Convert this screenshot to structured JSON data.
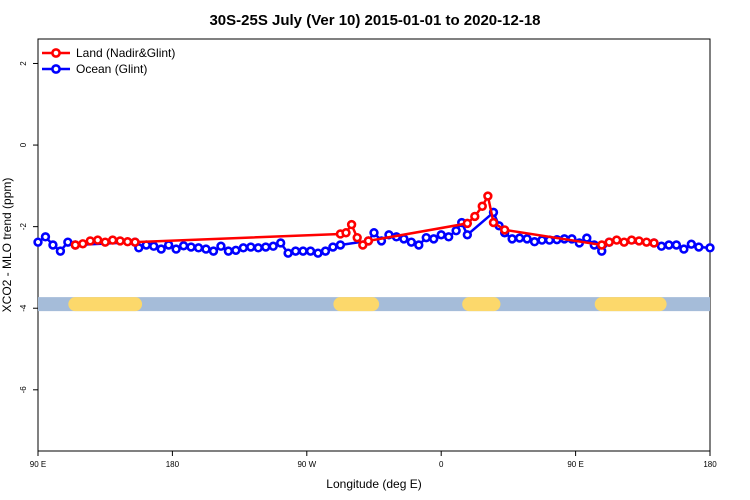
{
  "chart_data": {
    "type": "line",
    "title": "30S-25S July (Ver 10)   2015-01-01 to 2020-12-18",
    "xlabel": "Longitude (deg E)",
    "ylabel": "XCO2 - MLO trend (ppm)",
    "xlim": [
      90,
      450
    ],
    "ylim": [
      -7.5,
      2.6
    ],
    "x_ticks": [
      {
        "value": 90,
        "label": "90 E"
      },
      {
        "value": 162,
        "label": "180"
      },
      {
        "value": 234,
        "label": "90 W"
      },
      {
        "value": 306,
        "label": "0"
      },
      {
        "value": 378,
        "label": "90 E"
      },
      {
        "value": 450,
        "label": "180"
      }
    ],
    "y_ticks": [
      2,
      0,
      -2,
      -4,
      -6
    ],
    "grid": false,
    "legend_position": "top-left",
    "colors": {
      "land": "#ff0000",
      "ocean": "#0000ff",
      "ocean_band": "#a5bcd9",
      "land_band": "#fcd86b"
    },
    "surface_band": {
      "y": -3.9,
      "ocean_color": "#a5bcd9",
      "land_color": "#fcd86b",
      "land_segments": [
        [
          110,
          142
        ],
        [
          252,
          269
        ],
        [
          321,
          334
        ],
        [
          392,
          423
        ]
      ]
    },
    "series": [
      {
        "name": "Land (Nadir&Glint)",
        "color": "#ff0000",
        "points": [
          [
            110,
            -2.45
          ],
          [
            114,
            -2.42
          ],
          [
            118,
            -2.35
          ],
          [
            122,
            -2.33
          ],
          [
            126,
            -2.38
          ],
          [
            130,
            -2.33
          ],
          [
            134,
            -2.35
          ],
          [
            138,
            -2.37
          ],
          [
            142,
            -2.38
          ],
          [
            252,
            -2.18
          ],
          [
            255,
            -2.15
          ],
          [
            258,
            -1.95
          ],
          [
            261,
            -2.27
          ],
          [
            264,
            -2.45
          ],
          [
            267,
            -2.35
          ],
          [
            320,
            -1.92
          ],
          [
            324,
            -1.75
          ],
          [
            328,
            -1.5
          ],
          [
            331,
            -1.25
          ],
          [
            334,
            -1.9
          ],
          [
            340,
            -2.08
          ],
          [
            392,
            -2.45
          ],
          [
            396,
            -2.38
          ],
          [
            400,
            -2.33
          ],
          [
            404,
            -2.38
          ],
          [
            408,
            -2.33
          ],
          [
            412,
            -2.35
          ],
          [
            416,
            -2.38
          ],
          [
            420,
            -2.4
          ]
        ]
      },
      {
        "name": "Ocean (Glint)",
        "color": "#0000ff",
        "points": [
          [
            90,
            -2.38
          ],
          [
            94,
            -2.25
          ],
          [
            98,
            -2.45
          ],
          [
            102,
            -2.6
          ],
          [
            106,
            -2.38
          ],
          [
            110,
            -2.45
          ],
          [
            142,
            -2.38
          ],
          [
            144,
            -2.52
          ],
          [
            148,
            -2.45
          ],
          [
            152,
            -2.48
          ],
          [
            156,
            -2.55
          ],
          [
            160,
            -2.45
          ],
          [
            164,
            -2.55
          ],
          [
            168,
            -2.47
          ],
          [
            172,
            -2.5
          ],
          [
            176,
            -2.52
          ],
          [
            180,
            -2.55
          ],
          [
            184,
            -2.6
          ],
          [
            188,
            -2.48
          ],
          [
            192,
            -2.6
          ],
          [
            196,
            -2.58
          ],
          [
            200,
            -2.52
          ],
          [
            204,
            -2.5
          ],
          [
            208,
            -2.52
          ],
          [
            212,
            -2.5
          ],
          [
            216,
            -2.48
          ],
          [
            220,
            -2.4
          ],
          [
            224,
            -2.65
          ],
          [
            228,
            -2.6
          ],
          [
            232,
            -2.6
          ],
          [
            236,
            -2.6
          ],
          [
            240,
            -2.65
          ],
          [
            244,
            -2.6
          ],
          [
            248,
            -2.5
          ],
          [
            252,
            -2.45
          ],
          [
            267,
            -2.35
          ],
          [
            270,
            -2.15
          ],
          [
            274,
            -2.35
          ],
          [
            278,
            -2.2
          ],
          [
            282,
            -2.25
          ],
          [
            286,
            -2.3
          ],
          [
            290,
            -2.38
          ],
          [
            294,
            -2.45
          ],
          [
            298,
            -2.27
          ],
          [
            302,
            -2.3
          ],
          [
            306,
            -2.2
          ],
          [
            310,
            -2.25
          ],
          [
            314,
            -2.1
          ],
          [
            317,
            -1.9
          ],
          [
            320,
            -2.2
          ],
          [
            334,
            -1.65
          ],
          [
            337,
            -1.98
          ],
          [
            340,
            -2.15
          ],
          [
            344,
            -2.3
          ],
          [
            348,
            -2.28
          ],
          [
            352,
            -2.3
          ],
          [
            356,
            -2.37
          ],
          [
            360,
            -2.33
          ],
          [
            364,
            -2.33
          ],
          [
            368,
            -2.32
          ],
          [
            372,
            -2.3
          ],
          [
            376,
            -2.3
          ],
          [
            380,
            -2.4
          ],
          [
            384,
            -2.28
          ],
          [
            388,
            -2.45
          ],
          [
            392,
            -2.6
          ],
          [
            396,
            -2.38
          ],
          [
            420,
            -2.4
          ],
          [
            424,
            -2.48
          ],
          [
            428,
            -2.45
          ],
          [
            432,
            -2.45
          ],
          [
            436,
            -2.55
          ],
          [
            440,
            -2.43
          ],
          [
            444,
            -2.5
          ],
          [
            450,
            -2.52
          ]
        ]
      }
    ]
  }
}
